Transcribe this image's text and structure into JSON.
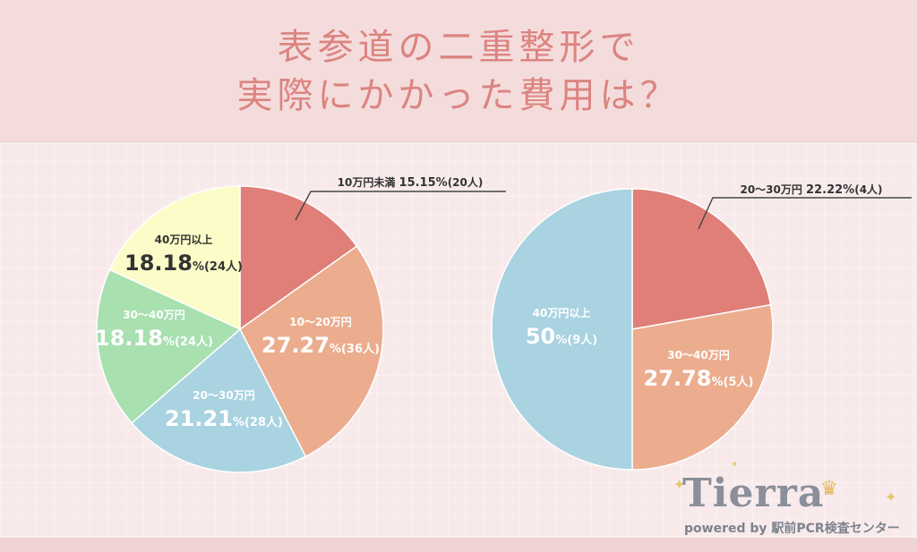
{
  "title": {
    "line1": "表参道の二重整形で",
    "line2": "実際にかかった費用は？"
  },
  "chart_data": [
    {
      "type": "pie",
      "title": "",
      "slices": [
        {
          "name": "10万円未満",
          "value": 15.15,
          "label": "15.15",
          "unit": "%",
          "count": "(20人)",
          "color": "#df7f78"
        },
        {
          "name": "10〜20万円",
          "value": 27.27,
          "label": "27.27",
          "unit": "%",
          "count": "(36人)",
          "color": "#ebad8e"
        },
        {
          "name": "20〜30万円",
          "value": 21.21,
          "label": "21.21",
          "unit": "%",
          "count": "(28人)",
          "color": "#a9d3e0"
        },
        {
          "name": "30〜40万円",
          "value": 18.18,
          "label": "18.18",
          "unit": "%",
          "count": "(24人)",
          "color": "#a8e0b0"
        },
        {
          "name": "40万円以上",
          "value": 18.18,
          "label": "18.18",
          "unit": "%",
          "count": "(24人)",
          "color": "#fbfcc8"
        }
      ]
    },
    {
      "type": "pie",
      "title": "",
      "slices": [
        {
          "name": "20〜30万円",
          "value": 22.22,
          "label": "22.22",
          "unit": "%",
          "count": "(4人)",
          "color": "#df7f78"
        },
        {
          "name": "30〜40万円",
          "value": 27.78,
          "label": "27.78",
          "unit": "%",
          "count": "(5人)",
          "color": "#ebad8e"
        },
        {
          "name": "40万円以上",
          "value": 50,
          "label": "50",
          "unit": "%",
          "count": "(9人)",
          "color": "#a9d3e0"
        }
      ]
    }
  ],
  "logo": {
    "name": "Tierra",
    "tagline": "powered by 駅前PCR検査センター"
  },
  "colors": {
    "title": "#dc8480",
    "text_on_slice": "#ffffff",
    "text_dark": "#333333"
  }
}
